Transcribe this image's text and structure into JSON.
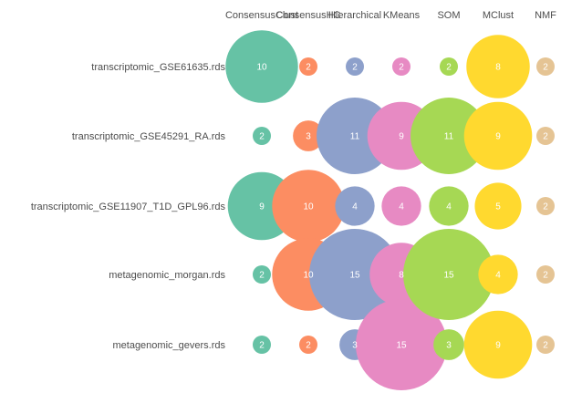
{
  "chart_data": {
    "type": "bubble-matrix",
    "columns": [
      {
        "label": "ConsensusClust",
        "color": "#66C2A5"
      },
      {
        "label": "ConsensusHC",
        "color": "#FC8D62"
      },
      {
        "label": "Hierarchical",
        "color": "#8DA0CB"
      },
      {
        "label": "KMeans",
        "color": "#E78AC3"
      },
      {
        "label": "SOM",
        "color": "#A6D854"
      },
      {
        "label": "MClust",
        "color": "#FFD92F"
      },
      {
        "label": "NMF",
        "color": "#E5C494"
      }
    ],
    "rows": [
      {
        "label": "transcriptomic_GSE61635.rds",
        "values": [
          10,
          2,
          2,
          2,
          2,
          8,
          2
        ]
      },
      {
        "label": "transcriptomic_GSE45291_RA.rds",
        "values": [
          2,
          3,
          11,
          9,
          11,
          9,
          2
        ]
      },
      {
        "label": "transcriptomic_GSE11907_T1D_GPL96.rds",
        "values": [
          9,
          10,
          4,
          4,
          4,
          5,
          2
        ]
      },
      {
        "label": "metagenomic_morgan.rds",
        "values": [
          2,
          10,
          15,
          8,
          15,
          4,
          2
        ]
      },
      {
        "label": "metagenomic_gevers.rds",
        "values": [
          2,
          2,
          3,
          15,
          3,
          9,
          2
        ]
      }
    ]
  }
}
